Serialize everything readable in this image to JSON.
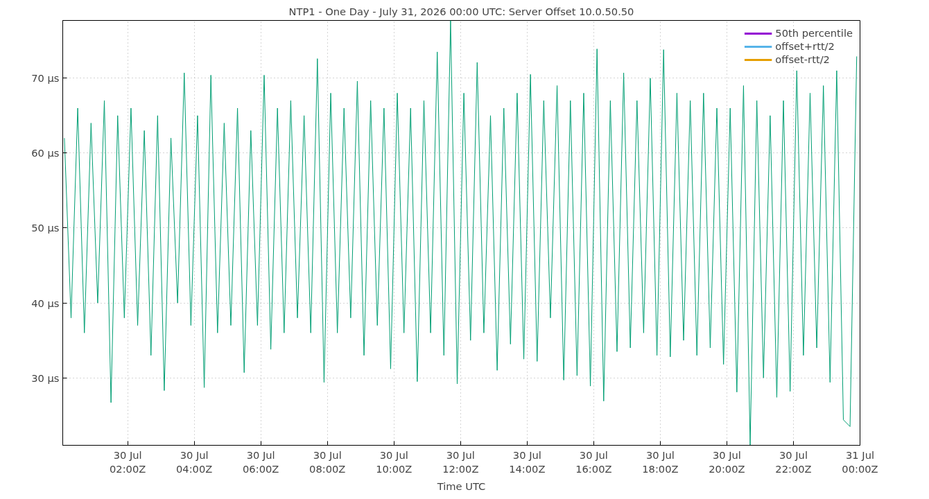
{
  "chart_data": {
    "type": "line",
    "title": "NTP1 - One Day - July 31, 2026 00:00 UTC: Server Offset 10.0.50.50",
    "xlabel": "Time UTC",
    "xlim": [
      "2026-07-30T00:03",
      "2026-07-31T00:00"
    ],
    "xticks": [
      {
        "value": "2026-07-30T02:00",
        "label": "30 Jul\n02:00Z"
      },
      {
        "value": "2026-07-30T04:00",
        "label": "30 Jul\n04:00Z"
      },
      {
        "value": "2026-07-30T06:00",
        "label": "30 Jul\n06:00Z"
      },
      {
        "value": "2026-07-30T08:00",
        "label": "30 Jul\n08:00Z"
      },
      {
        "value": "2026-07-30T10:00",
        "label": "30 Jul\n10:00Z"
      },
      {
        "value": "2026-07-30T12:00",
        "label": "30 Jul\n12:00Z"
      },
      {
        "value": "2026-07-30T14:00",
        "label": "30 Jul\n14:00Z"
      },
      {
        "value": "2026-07-30T16:00",
        "label": "30 Jul\n16:00Z"
      },
      {
        "value": "2026-07-30T18:00",
        "label": "30 Jul\n18:00Z"
      },
      {
        "value": "2026-07-30T20:00",
        "label": "30 Jul\n20:00Z"
      },
      {
        "value": "2026-07-30T22:00",
        "label": "30 Jul\n22:00Z"
      },
      {
        "value": "2026-07-31T00:00",
        "label": "31 Jul\n00:00Z"
      }
    ],
    "ylim": [
      21.0,
      77.7
    ],
    "yticks": [
      {
        "value": 30,
        "label": "30 µs"
      },
      {
        "value": 40,
        "label": "40 µs"
      },
      {
        "value": 50,
        "label": "50 µs"
      },
      {
        "value": 60,
        "label": "60 µs"
      },
      {
        "value": 70,
        "label": "70 µs"
      }
    ],
    "grid": true,
    "legend": "top right",
    "series": [
      {
        "name": "50th percentile",
        "color": "#9400d3"
      },
      {
        "color": "#009e73",
        "x": [
          "2026-07-30T00:06",
          "2026-07-30T00:18",
          "2026-07-30T00:30",
          "2026-07-30T00:42",
          "2026-07-30T00:54",
          "2026-07-30T01:06",
          "2026-07-30T01:18",
          "2026-07-30T01:30",
          "2026-07-30T01:42",
          "2026-07-30T01:54",
          "2026-07-30T02:06",
          "2026-07-30T02:18",
          "2026-07-30T02:30",
          "2026-07-30T02:42",
          "2026-07-30T02:54",
          "2026-07-30T03:06",
          "2026-07-30T03:18",
          "2026-07-30T03:30",
          "2026-07-30T03:42",
          "2026-07-30T03:54",
          "2026-07-30T04:06",
          "2026-07-30T04:18",
          "2026-07-30T04:30",
          "2026-07-30T04:42",
          "2026-07-30T04:54",
          "2026-07-30T05:06",
          "2026-07-30T05:18",
          "2026-07-30T05:30",
          "2026-07-30T05:42",
          "2026-07-30T05:54",
          "2026-07-30T06:06",
          "2026-07-30T06:18",
          "2026-07-30T06:30",
          "2026-07-30T06:42",
          "2026-07-30T06:54",
          "2026-07-30T07:06",
          "2026-07-30T07:18",
          "2026-07-30T07:30",
          "2026-07-30T07:42",
          "2026-07-30T07:54",
          "2026-07-30T08:06",
          "2026-07-30T08:18",
          "2026-07-30T08:30",
          "2026-07-30T08:42",
          "2026-07-30T08:54",
          "2026-07-30T09:06",
          "2026-07-30T09:18",
          "2026-07-30T09:30",
          "2026-07-30T09:42",
          "2026-07-30T09:54",
          "2026-07-30T10:06",
          "2026-07-30T10:18",
          "2026-07-30T10:30",
          "2026-07-30T10:42",
          "2026-07-30T10:54",
          "2026-07-30T11:06",
          "2026-07-30T11:18",
          "2026-07-30T11:30",
          "2026-07-30T11:42",
          "2026-07-30T11:54",
          "2026-07-30T12:06",
          "2026-07-30T12:18",
          "2026-07-30T12:30",
          "2026-07-30T12:42",
          "2026-07-30T12:54",
          "2026-07-30T13:06",
          "2026-07-30T13:18",
          "2026-07-30T13:30",
          "2026-07-30T13:42",
          "2026-07-30T13:54",
          "2026-07-30T14:06",
          "2026-07-30T14:18",
          "2026-07-30T14:30",
          "2026-07-30T14:42",
          "2026-07-30T14:54",
          "2026-07-30T15:06",
          "2026-07-30T15:18",
          "2026-07-30T15:30",
          "2026-07-30T15:42",
          "2026-07-30T15:54",
          "2026-07-30T16:06",
          "2026-07-30T16:18",
          "2026-07-30T16:30",
          "2026-07-30T16:42",
          "2026-07-30T16:54",
          "2026-07-30T17:06",
          "2026-07-30T17:18",
          "2026-07-30T17:30",
          "2026-07-30T17:42",
          "2026-07-30T17:54",
          "2026-07-30T18:06",
          "2026-07-30T18:18",
          "2026-07-30T18:30",
          "2026-07-30T18:42",
          "2026-07-30T18:54",
          "2026-07-30T19:06",
          "2026-07-30T19:18",
          "2026-07-30T19:30",
          "2026-07-30T19:42",
          "2026-07-30T19:54",
          "2026-07-30T20:06",
          "2026-07-30T20:18",
          "2026-07-30T20:30",
          "2026-07-30T20:42",
          "2026-07-30T20:54",
          "2026-07-30T21:06",
          "2026-07-30T21:18",
          "2026-07-30T21:30",
          "2026-07-30T21:42",
          "2026-07-30T21:54",
          "2026-07-30T22:06",
          "2026-07-30T22:18",
          "2026-07-30T22:30",
          "2026-07-30T22:42",
          "2026-07-30T22:54",
          "2026-07-30T23:06",
          "2026-07-30T23:18",
          "2026-07-30T23:30",
          "2026-07-30T23:42",
          "2026-07-30T23:54"
        ],
        "values": [
          62,
          38,
          66,
          36,
          64,
          40,
          67,
          26.7,
          65,
          38,
          66,
          37,
          63,
          33,
          65,
          28.3,
          62,
          40,
          70.7,
          37,
          65,
          28.7,
          70.4,
          36,
          64,
          37,
          66,
          30.7,
          63,
          37,
          70.4,
          33.8,
          66,
          36,
          67,
          38,
          65,
          36,
          72.6,
          29.4,
          68,
          36,
          66,
          38,
          69.6,
          33,
          67,
          37,
          66,
          31.2,
          68,
          36,
          66,
          29.5,
          67,
          36,
          73.5,
          33,
          77.7,
          29.2,
          68,
          35,
          72.1,
          36,
          65,
          31,
          66,
          34.5,
          68,
          32.5,
          70.5,
          32.2,
          67,
          38,
          69,
          29.7,
          67,
          30.3,
          68,
          28.9,
          73.9,
          26.9,
          67,
          33.5,
          70.7,
          34,
          67,
          36,
          70,
          33,
          73.8,
          32.8,
          68,
          35,
          67,
          33,
          68,
          34,
          66,
          31.8,
          66,
          28.1,
          69,
          21.0,
          67,
          30,
          65,
          27.4,
          67,
          28.2,
          71,
          33,
          68,
          34,
          69,
          29.4,
          71,
          24.4,
          23.5,
          72.9
        ]
      },
      {
        "name": "offset+rtt/2",
        "color": "#56b4e9"
      },
      {
        "name": "offset-rtt/2",
        "color": "#e69f00"
      }
    ]
  }
}
